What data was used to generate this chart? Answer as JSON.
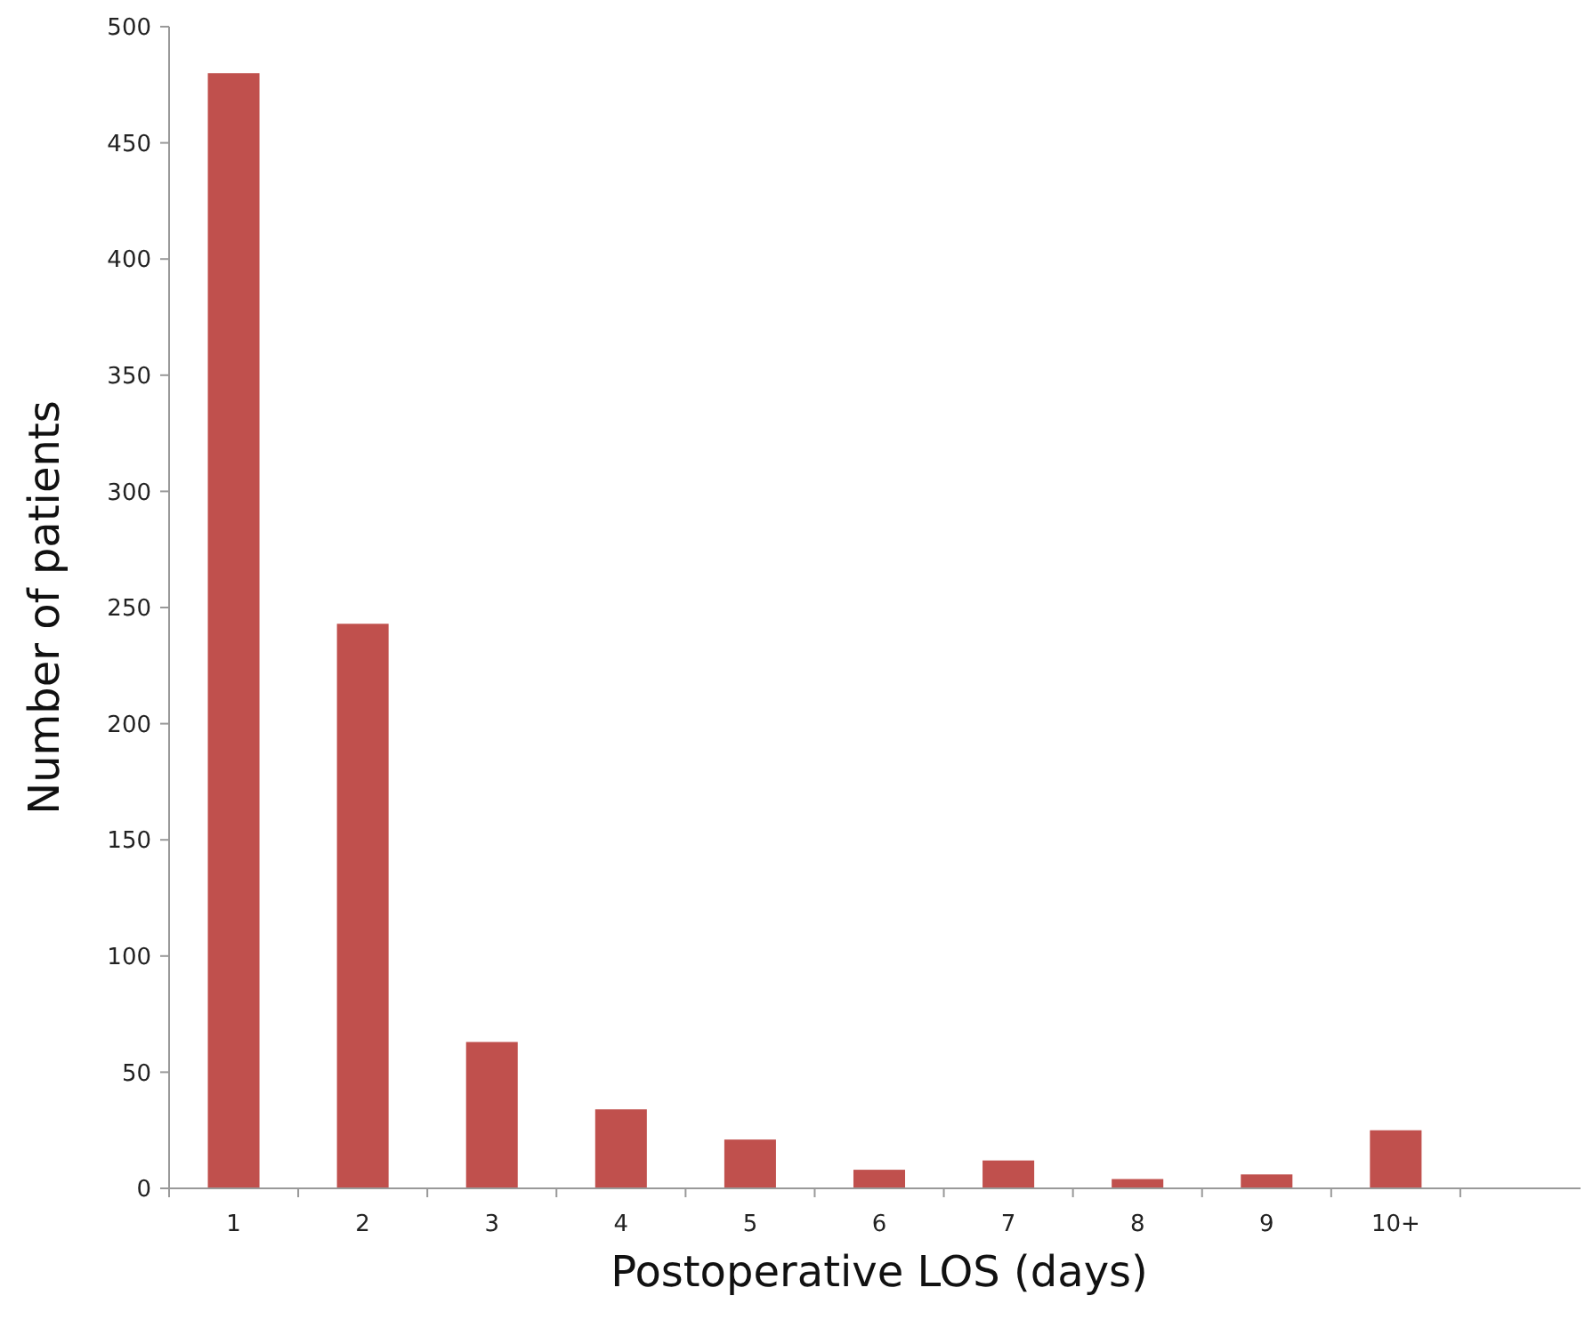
{
  "chart_data": {
    "type": "bar",
    "xlabel": "Postoperative LOS (days)",
    "ylabel": "Number of patients",
    "categories": [
      "1",
      "2",
      "3",
      "4",
      "5",
      "6",
      "7",
      "8",
      "9",
      "10+",
      null
    ],
    "values": [
      480,
      243,
      63,
      34,
      21,
      8,
      12,
      4,
      6,
      25,
      null
    ],
    "color": "#c0504d",
    "ylim": [
      0,
      500
    ],
    "yticks": [
      0,
      50,
      100,
      150,
      200,
      250,
      300,
      350,
      400,
      450,
      500
    ],
    "grid": false
  }
}
